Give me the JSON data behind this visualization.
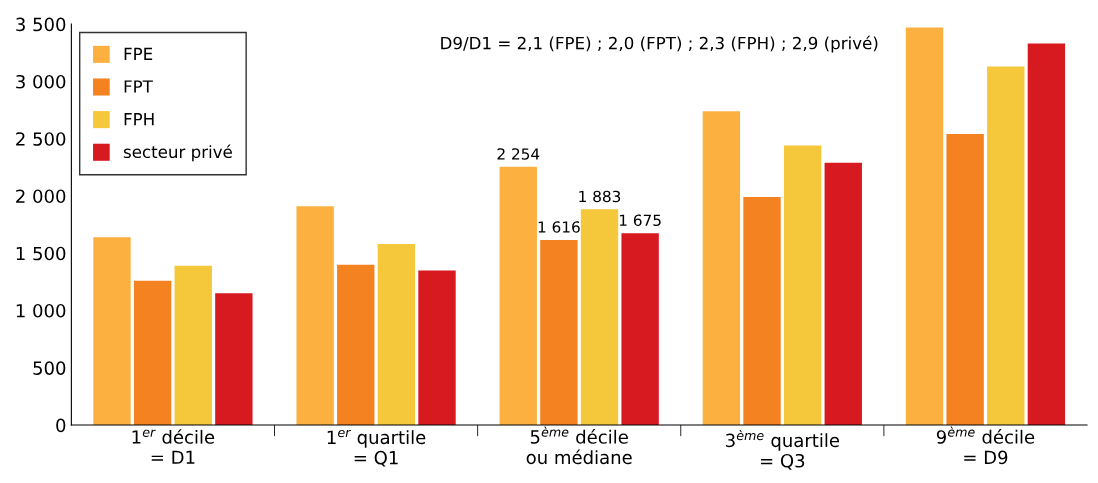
{
  "chart_data": {
    "type": "bar",
    "categories": [
      "1$^{er}$ décile\n= D1",
      "1$^{er}$ quartile\n= Q1",
      "5$^{ème}$ décile\nou médiane",
      "3$^{ème}$ quartile\n= Q3",
      "9$^{ème}$ décile\n= D9"
    ],
    "series": [
      {
        "name": "FPE",
        "color": "#fbb040",
        "values": [
          1640,
          1910,
          2254,
          2740,
          3470
        ],
        "value_labels": [
          null,
          null,
          "2 254",
          null,
          null
        ]
      },
      {
        "name": "FPT",
        "color": "#f58220",
        "values": [
          1260,
          1400,
          1616,
          1990,
          2540
        ],
        "value_labels": [
          null,
          null,
          "1 616",
          null,
          null
        ]
      },
      {
        "name": "FPH",
        "color": "#f5c73a",
        "values": [
          1390,
          1580,
          1883,
          2440,
          3130
        ],
        "value_labels": [
          null,
          null,
          "1 883",
          null,
          null
        ]
      },
      {
        "name": "secteur privé",
        "color": "#d71920",
        "values": [
          1150,
          1350,
          1675,
          2290,
          3330
        ],
        "value_labels": [
          null,
          null,
          "1 675",
          null,
          null
        ]
      }
    ],
    "ylim": [
      0,
      3500
    ],
    "yticks": [
      0,
      500,
      {
        "value": 1000,
        "label": "1 000"
      },
      {
        "value": 1500,
        "label": "1 500"
      },
      {
        "value": 2000,
        "label": "2 000"
      },
      {
        "value": 2500,
        "label": "2 500"
      },
      {
        "value": 3000,
        "label": "3 000"
      },
      {
        "value": 3500,
        "label": "3 500"
      }
    ],
    "annotations": [
      "D9/D1 = 2,1 (FPE) ; 2,0 (FPT) ; 2,3 (FPH) ; 2,9 (privé)"
    ],
    "legend": "top left",
    "grid": false
  }
}
